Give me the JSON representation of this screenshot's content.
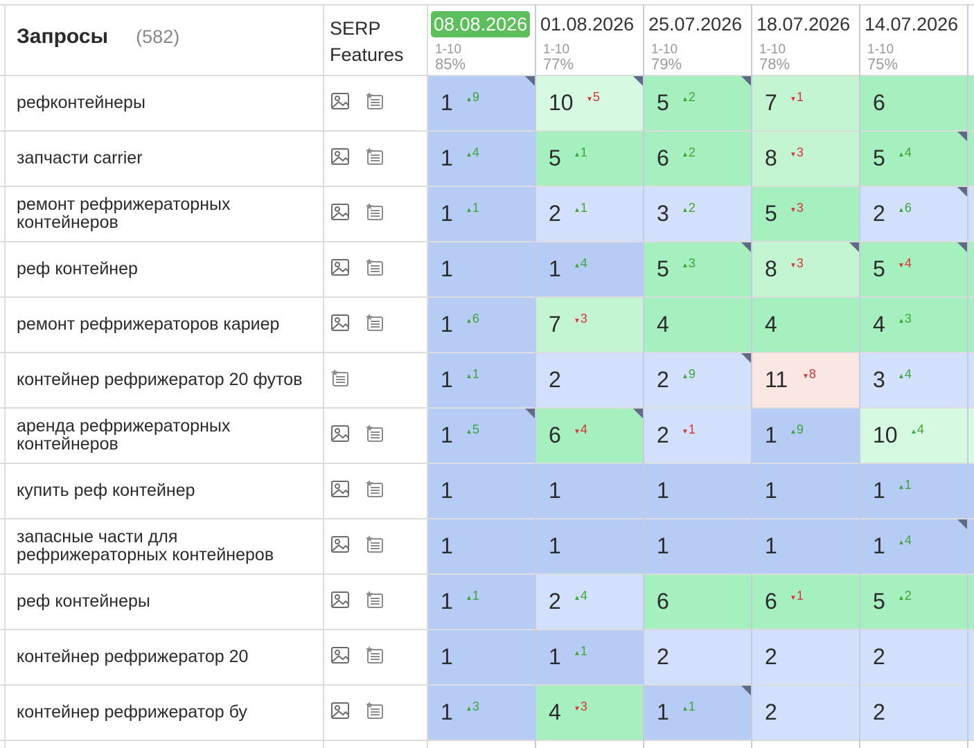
{
  "header": {
    "query_title": "Запросы",
    "query_count": "(582)",
    "serp_title_line1": "SERP",
    "serp_title_line2": "Features",
    "dates": [
      {
        "date": "08.08.2026",
        "range": "1-10",
        "pct": "85%",
        "active": true
      },
      {
        "date": "01.08.2026",
        "range": "1-10",
        "pct": "77%",
        "active": false
      },
      {
        "date": "25.07.2026",
        "range": "1-10",
        "pct": "79%",
        "active": false
      },
      {
        "date": "18.07.2026",
        "range": "1-10",
        "pct": "78%",
        "active": false
      },
      {
        "date": "14.07.2026",
        "range": "1-10",
        "pct": "75%",
        "active": false
      }
    ]
  },
  "colors": {
    "top": "#b6ccf5",
    "top3": "#d3e0fb",
    "top5": "#a6efbf",
    "top10": "#d6f9e2",
    "out": "#fae6e2",
    "light_green": "#c3f5d3",
    "up": "#3aa63a",
    "down": "#d63333",
    "active_date_bg": "#5cbf5c"
  },
  "rows": [
    {
      "query": "рефконтейнеры",
      "serp": [
        "image-icon",
        "news-icon"
      ],
      "cells": [
        {
          "pos": "1",
          "delta": "9",
          "dir": "up",
          "bg": "top",
          "corner": true
        },
        {
          "pos": "10",
          "delta": "5",
          "dir": "down",
          "bg": "top10",
          "corner": true
        },
        {
          "pos": "5",
          "delta": "2",
          "dir": "up",
          "bg": "top5",
          "corner": true
        },
        {
          "pos": "7",
          "delta": "1",
          "dir": "down",
          "bg": "light_green",
          "corner": false
        },
        {
          "pos": "6",
          "delta": "",
          "dir": "",
          "bg": "top5",
          "corner": false
        }
      ]
    },
    {
      "query": "запчасти carrier",
      "serp": [
        "image-icon",
        "news-icon"
      ],
      "cells": [
        {
          "pos": "1",
          "delta": "4",
          "dir": "up",
          "bg": "top",
          "corner": false
        },
        {
          "pos": "5",
          "delta": "1",
          "dir": "up",
          "bg": "top5",
          "corner": false
        },
        {
          "pos": "6",
          "delta": "2",
          "dir": "up",
          "bg": "top5",
          "corner": false
        },
        {
          "pos": "8",
          "delta": "3",
          "dir": "down",
          "bg": "light_green",
          "corner": false
        },
        {
          "pos": "5",
          "delta": "4",
          "dir": "up",
          "bg": "top5",
          "corner": true
        }
      ]
    },
    {
      "query": "ремонт рефрижераторных контейнеров",
      "serp": [
        "image-icon",
        "news-icon"
      ],
      "cells": [
        {
          "pos": "1",
          "delta": "1",
          "dir": "up",
          "bg": "top",
          "corner": false
        },
        {
          "pos": "2",
          "delta": "1",
          "dir": "up",
          "bg": "top3",
          "corner": false
        },
        {
          "pos": "3",
          "delta": "2",
          "dir": "up",
          "bg": "top3",
          "corner": false
        },
        {
          "pos": "5",
          "delta": "3",
          "dir": "down",
          "bg": "top5",
          "corner": false
        },
        {
          "pos": "2",
          "delta": "6",
          "dir": "up",
          "bg": "top3",
          "corner": true
        }
      ]
    },
    {
      "query": "реф контейнер",
      "serp": [
        "image-icon",
        "news-icon"
      ],
      "cells": [
        {
          "pos": "1",
          "delta": "",
          "dir": "",
          "bg": "top",
          "corner": false
        },
        {
          "pos": "1",
          "delta": "4",
          "dir": "up",
          "bg": "top",
          "corner": false
        },
        {
          "pos": "5",
          "delta": "3",
          "dir": "up",
          "bg": "top5",
          "corner": true
        },
        {
          "pos": "8",
          "delta": "3",
          "dir": "down",
          "bg": "light_green",
          "corner": true
        },
        {
          "pos": "5",
          "delta": "4",
          "dir": "down",
          "bg": "top5",
          "corner": true
        }
      ]
    },
    {
      "query": "ремонт рефрижераторов кариер",
      "serp": [
        "image-icon",
        "news-icon"
      ],
      "cells": [
        {
          "pos": "1",
          "delta": "6",
          "dir": "up",
          "bg": "top",
          "corner": false
        },
        {
          "pos": "7",
          "delta": "3",
          "dir": "down",
          "bg": "light_green",
          "corner": false
        },
        {
          "pos": "4",
          "delta": "",
          "dir": "",
          "bg": "top5",
          "corner": false
        },
        {
          "pos": "4",
          "delta": "",
          "dir": "",
          "bg": "top5",
          "corner": false
        },
        {
          "pos": "4",
          "delta": "3",
          "dir": "up",
          "bg": "top5",
          "corner": false
        }
      ]
    },
    {
      "query": "контейнер рефрижератор 20 футов",
      "serp": [
        "news-icon"
      ],
      "cells": [
        {
          "pos": "1",
          "delta": "1",
          "dir": "up",
          "bg": "top",
          "corner": false
        },
        {
          "pos": "2",
          "delta": "",
          "dir": "",
          "bg": "top3",
          "corner": false
        },
        {
          "pos": "2",
          "delta": "9",
          "dir": "up",
          "bg": "top3",
          "corner": true
        },
        {
          "pos": "11",
          "delta": "8",
          "dir": "down",
          "bg": "out",
          "corner": false
        },
        {
          "pos": "3",
          "delta": "4",
          "dir": "up",
          "bg": "top3",
          "corner": false
        }
      ]
    },
    {
      "query": "аренда рефрижераторных контейнеров",
      "serp": [
        "image-icon",
        "news-icon"
      ],
      "cells": [
        {
          "pos": "1",
          "delta": "5",
          "dir": "up",
          "bg": "top",
          "corner": true
        },
        {
          "pos": "6",
          "delta": "4",
          "dir": "down",
          "bg": "top5",
          "corner": true
        },
        {
          "pos": "2",
          "delta": "1",
          "dir": "down",
          "bg": "top3",
          "corner": false
        },
        {
          "pos": "1",
          "delta": "9",
          "dir": "up",
          "bg": "top",
          "corner": false
        },
        {
          "pos": "10",
          "delta": "4",
          "dir": "up",
          "bg": "top10",
          "corner": false
        }
      ]
    },
    {
      "query": "купить реф контейнер",
      "serp": [
        "image-icon",
        "news-icon"
      ],
      "cells": [
        {
          "pos": "1",
          "delta": "",
          "dir": "",
          "bg": "top",
          "corner": false
        },
        {
          "pos": "1",
          "delta": "",
          "dir": "",
          "bg": "top",
          "corner": false
        },
        {
          "pos": "1",
          "delta": "",
          "dir": "",
          "bg": "top",
          "corner": false
        },
        {
          "pos": "1",
          "delta": "",
          "dir": "",
          "bg": "top",
          "corner": false
        },
        {
          "pos": "1",
          "delta": "1",
          "dir": "up",
          "bg": "top",
          "corner": false
        }
      ]
    },
    {
      "query": "запасные части для рефрижераторных контейнеров",
      "serp": [
        "image-icon",
        "news-icon"
      ],
      "cells": [
        {
          "pos": "1",
          "delta": "",
          "dir": "",
          "bg": "top",
          "corner": false
        },
        {
          "pos": "1",
          "delta": "",
          "dir": "",
          "bg": "top",
          "corner": false
        },
        {
          "pos": "1",
          "delta": "",
          "dir": "",
          "bg": "top",
          "corner": false
        },
        {
          "pos": "1",
          "delta": "",
          "dir": "",
          "bg": "top",
          "corner": false
        },
        {
          "pos": "1",
          "delta": "4",
          "dir": "up",
          "bg": "top",
          "corner": true
        }
      ]
    },
    {
      "query": "реф контейнеры",
      "serp": [
        "image-icon",
        "news-icon"
      ],
      "cells": [
        {
          "pos": "1",
          "delta": "1",
          "dir": "up",
          "bg": "top",
          "corner": false
        },
        {
          "pos": "2",
          "delta": "4",
          "dir": "up",
          "bg": "top3",
          "corner": false
        },
        {
          "pos": "6",
          "delta": "",
          "dir": "",
          "bg": "top5",
          "corner": false
        },
        {
          "pos": "6",
          "delta": "1",
          "dir": "down",
          "bg": "top5",
          "corner": false
        },
        {
          "pos": "5",
          "delta": "2",
          "dir": "up",
          "bg": "top5",
          "corner": false
        }
      ]
    },
    {
      "query": "контейнер рефрижератор 20",
      "serp": [
        "image-icon",
        "news-icon"
      ],
      "cells": [
        {
          "pos": "1",
          "delta": "",
          "dir": "",
          "bg": "top",
          "corner": false
        },
        {
          "pos": "1",
          "delta": "1",
          "dir": "up",
          "bg": "top",
          "corner": false
        },
        {
          "pos": "2",
          "delta": "",
          "dir": "",
          "bg": "top3",
          "corner": false
        },
        {
          "pos": "2",
          "delta": "",
          "dir": "",
          "bg": "top3",
          "corner": false
        },
        {
          "pos": "2",
          "delta": "",
          "dir": "",
          "bg": "top3",
          "corner": false
        }
      ]
    },
    {
      "query": "контейнер рефрижератор бу",
      "serp": [
        "image-icon",
        "news-icon"
      ],
      "cells": [
        {
          "pos": "1",
          "delta": "3",
          "dir": "up",
          "bg": "top",
          "corner": false
        },
        {
          "pos": "4",
          "delta": "3",
          "dir": "down",
          "bg": "top5",
          "corner": false
        },
        {
          "pos": "1",
          "delta": "1",
          "dir": "up",
          "bg": "top",
          "corner": true
        },
        {
          "pos": "2",
          "delta": "",
          "dir": "",
          "bg": "top3",
          "corner": false
        },
        {
          "pos": "2",
          "delta": "",
          "dir": "",
          "bg": "top3",
          "corner": false
        }
      ]
    }
  ]
}
